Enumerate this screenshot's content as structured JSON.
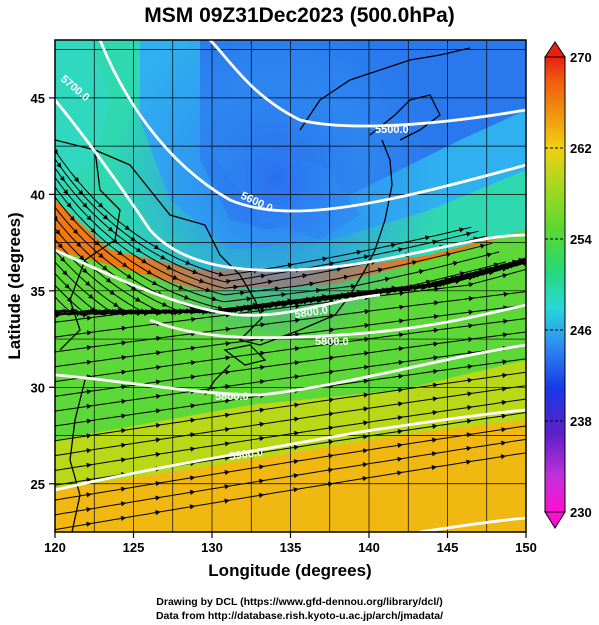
{
  "title": "MSM 09Z31Dec2023 (500.0hPa)",
  "x_axis": {
    "label": "Longitude (degrees)",
    "range": [
      120,
      150
    ],
    "ticks": [
      120,
      125,
      130,
      135,
      140,
      145,
      150
    ]
  },
  "y_axis": {
    "label": "Latitude (degrees)",
    "range": [
      22.5,
      48
    ],
    "ticks": [
      25,
      30,
      35,
      40,
      45
    ]
  },
  "colorbar": {
    "ticks": [
      "270",
      "262",
      "254",
      "246",
      "238",
      "230"
    ],
    "range": [
      230,
      270
    ],
    "colors": [
      "#ff10d0",
      "#c030d8",
      "#6020c8",
      "#1838e8",
      "#2f8ff2",
      "#28d8d8",
      "#28d878",
      "#58d830",
      "#a8d820",
      "#f0d010",
      "#f09010",
      "#f05a10",
      "#e82010"
    ]
  },
  "contour_labels": [
    "5500.0",
    "5600.0",
    "5700.0",
    "5800.0",
    "5800.0",
    "5900.0",
    "5800.0"
  ],
  "grid": true,
  "footer": {
    "line1": "Drawing by DCL (https://www.gfd-dennou.org/library/dcl/)",
    "line2": "Data from http://database.rish.kyoto-u.ac.jp/arch/jmadata/"
  }
}
